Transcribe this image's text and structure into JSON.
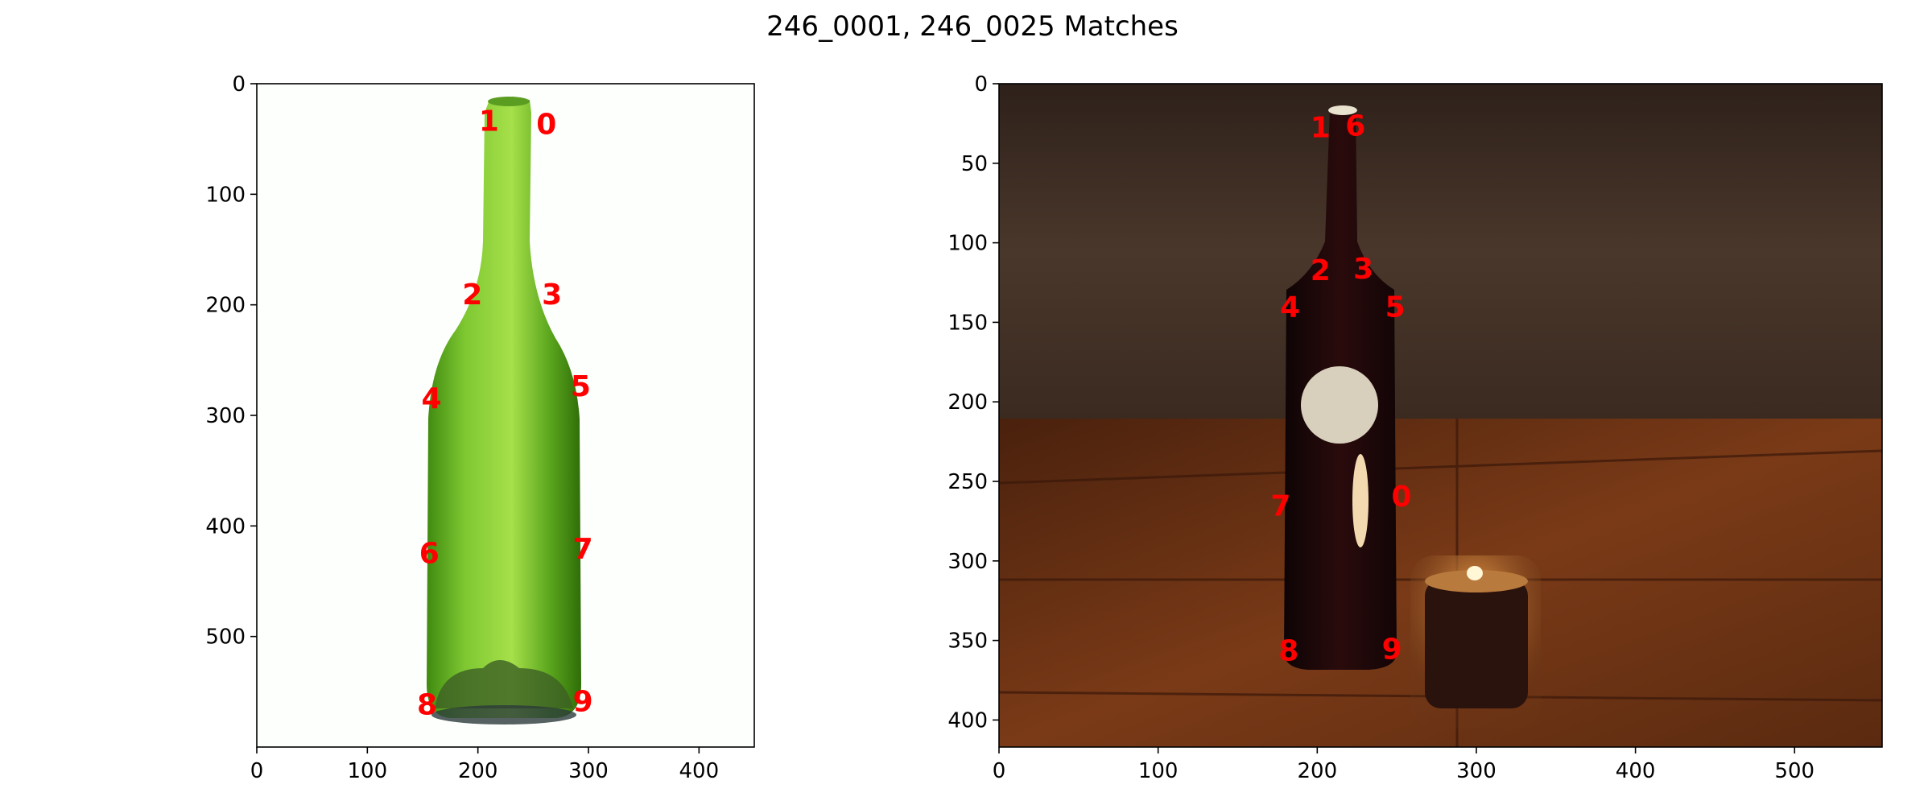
{
  "chart_data": [
    {
      "type": "scatter",
      "title": "246_0001, 246_0025 Matches",
      "image_name": "246_0001",
      "image_description": "green glass wine bottle on white background",
      "xlim": [
        0,
        450
      ],
      "ylim": [
        600,
        0
      ],
      "xticks": [
        0,
        100,
        200,
        300,
        400
      ],
      "yticks": [
        0,
        100,
        200,
        300,
        400,
        500
      ],
      "points": [
        {
          "label": "0",
          "x": 262,
          "y": 36
        },
        {
          "label": "1",
          "x": 210,
          "y": 33
        },
        {
          "label": "2",
          "x": 195,
          "y": 190
        },
        {
          "label": "3",
          "x": 267,
          "y": 190
        },
        {
          "label": "4",
          "x": 158,
          "y": 284
        },
        {
          "label": "5",
          "x": 293,
          "y": 273
        },
        {
          "label": "6",
          "x": 156,
          "y": 424
        },
        {
          "label": "7",
          "x": 295,
          "y": 420
        },
        {
          "label": "8",
          "x": 154,
          "y": 561
        },
        {
          "label": "9",
          "x": 295,
          "y": 558
        }
      ]
    },
    {
      "type": "scatter",
      "image_name": "246_0025",
      "image_description": "dark wine bottle on wooden table beside a lit candle",
      "xlim": [
        0,
        555
      ],
      "ylim": [
        417,
        0
      ],
      "xticks": [
        0,
        100,
        200,
        300,
        400,
        500
      ],
      "yticks": [
        0,
        50,
        100,
        150,
        200,
        250,
        300,
        350,
        400
      ],
      "points": [
        {
          "label": "0",
          "x": 253,
          "y": 259
        },
        {
          "label": "1",
          "x": 202,
          "y": 27
        },
        {
          "label": "2",
          "x": 202,
          "y": 117
        },
        {
          "label": "3",
          "x": 229,
          "y": 116
        },
        {
          "label": "4",
          "x": 183,
          "y": 140
        },
        {
          "label": "5",
          "x": 249,
          "y": 140
        },
        {
          "label": "6",
          "x": 224,
          "y": 26
        },
        {
          "label": "7",
          "x": 177,
          "y": 265
        },
        {
          "label": "8",
          "x": 182,
          "y": 356
        },
        {
          "label": "9",
          "x": 247,
          "y": 355
        }
      ]
    }
  ],
  "colors": {
    "keypoint_label": "#ff0000",
    "axes": "#000000",
    "left_background": "#fdfffd",
    "right_wall": "#3f2d22",
    "right_table": "#5b2c13"
  }
}
